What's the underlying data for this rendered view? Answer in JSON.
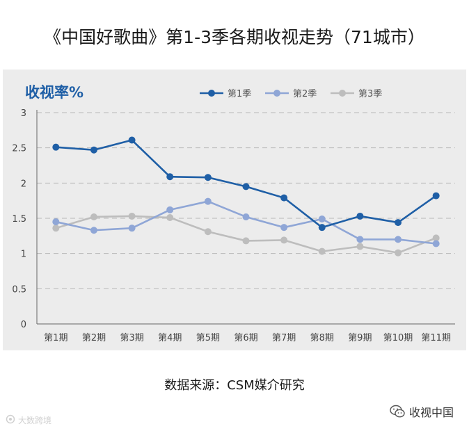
{
  "title": "《中国好歌曲》第1-3季各期收视走势（71城市）",
  "source": "数据来源：CSM媒介研究",
  "brand": {
    "label": "收视中国",
    "icon": "wechat-icon"
  },
  "watermark": {
    "text": "大数跨境",
    "icon": "logo-icon"
  },
  "chart_data": {
    "type": "line",
    "ylabel": "收视率%",
    "categories": [
      "第1期",
      "第2期",
      "第3期",
      "第4期",
      "第5期",
      "第6期",
      "第7期",
      "第8期",
      "第9期",
      "第10期",
      "第11期"
    ],
    "yticks": [
      "0",
      "0.5",
      "1",
      "1.5",
      "2",
      "2.5",
      "3"
    ],
    "ylim": [
      0,
      3
    ],
    "grid": true,
    "legend_position": "top",
    "series": [
      {
        "name": "第1季",
        "color": "#1f5fa6",
        "values": [
          2.51,
          2.47,
          2.61,
          2.09,
          2.08,
          1.95,
          1.79,
          1.37,
          1.53,
          1.44,
          1.82
        ]
      },
      {
        "name": "第2季",
        "color": "#8fa6d6",
        "values": [
          1.45,
          1.33,
          1.36,
          1.62,
          1.74,
          1.52,
          1.37,
          1.49,
          1.2,
          1.2,
          1.14
        ]
      },
      {
        "name": "第3季",
        "color": "#bdbdbd",
        "values": [
          1.36,
          1.52,
          1.53,
          1.51,
          1.31,
          1.18,
          1.19,
          1.03,
          1.1,
          1.01,
          1.22
        ]
      }
    ]
  }
}
